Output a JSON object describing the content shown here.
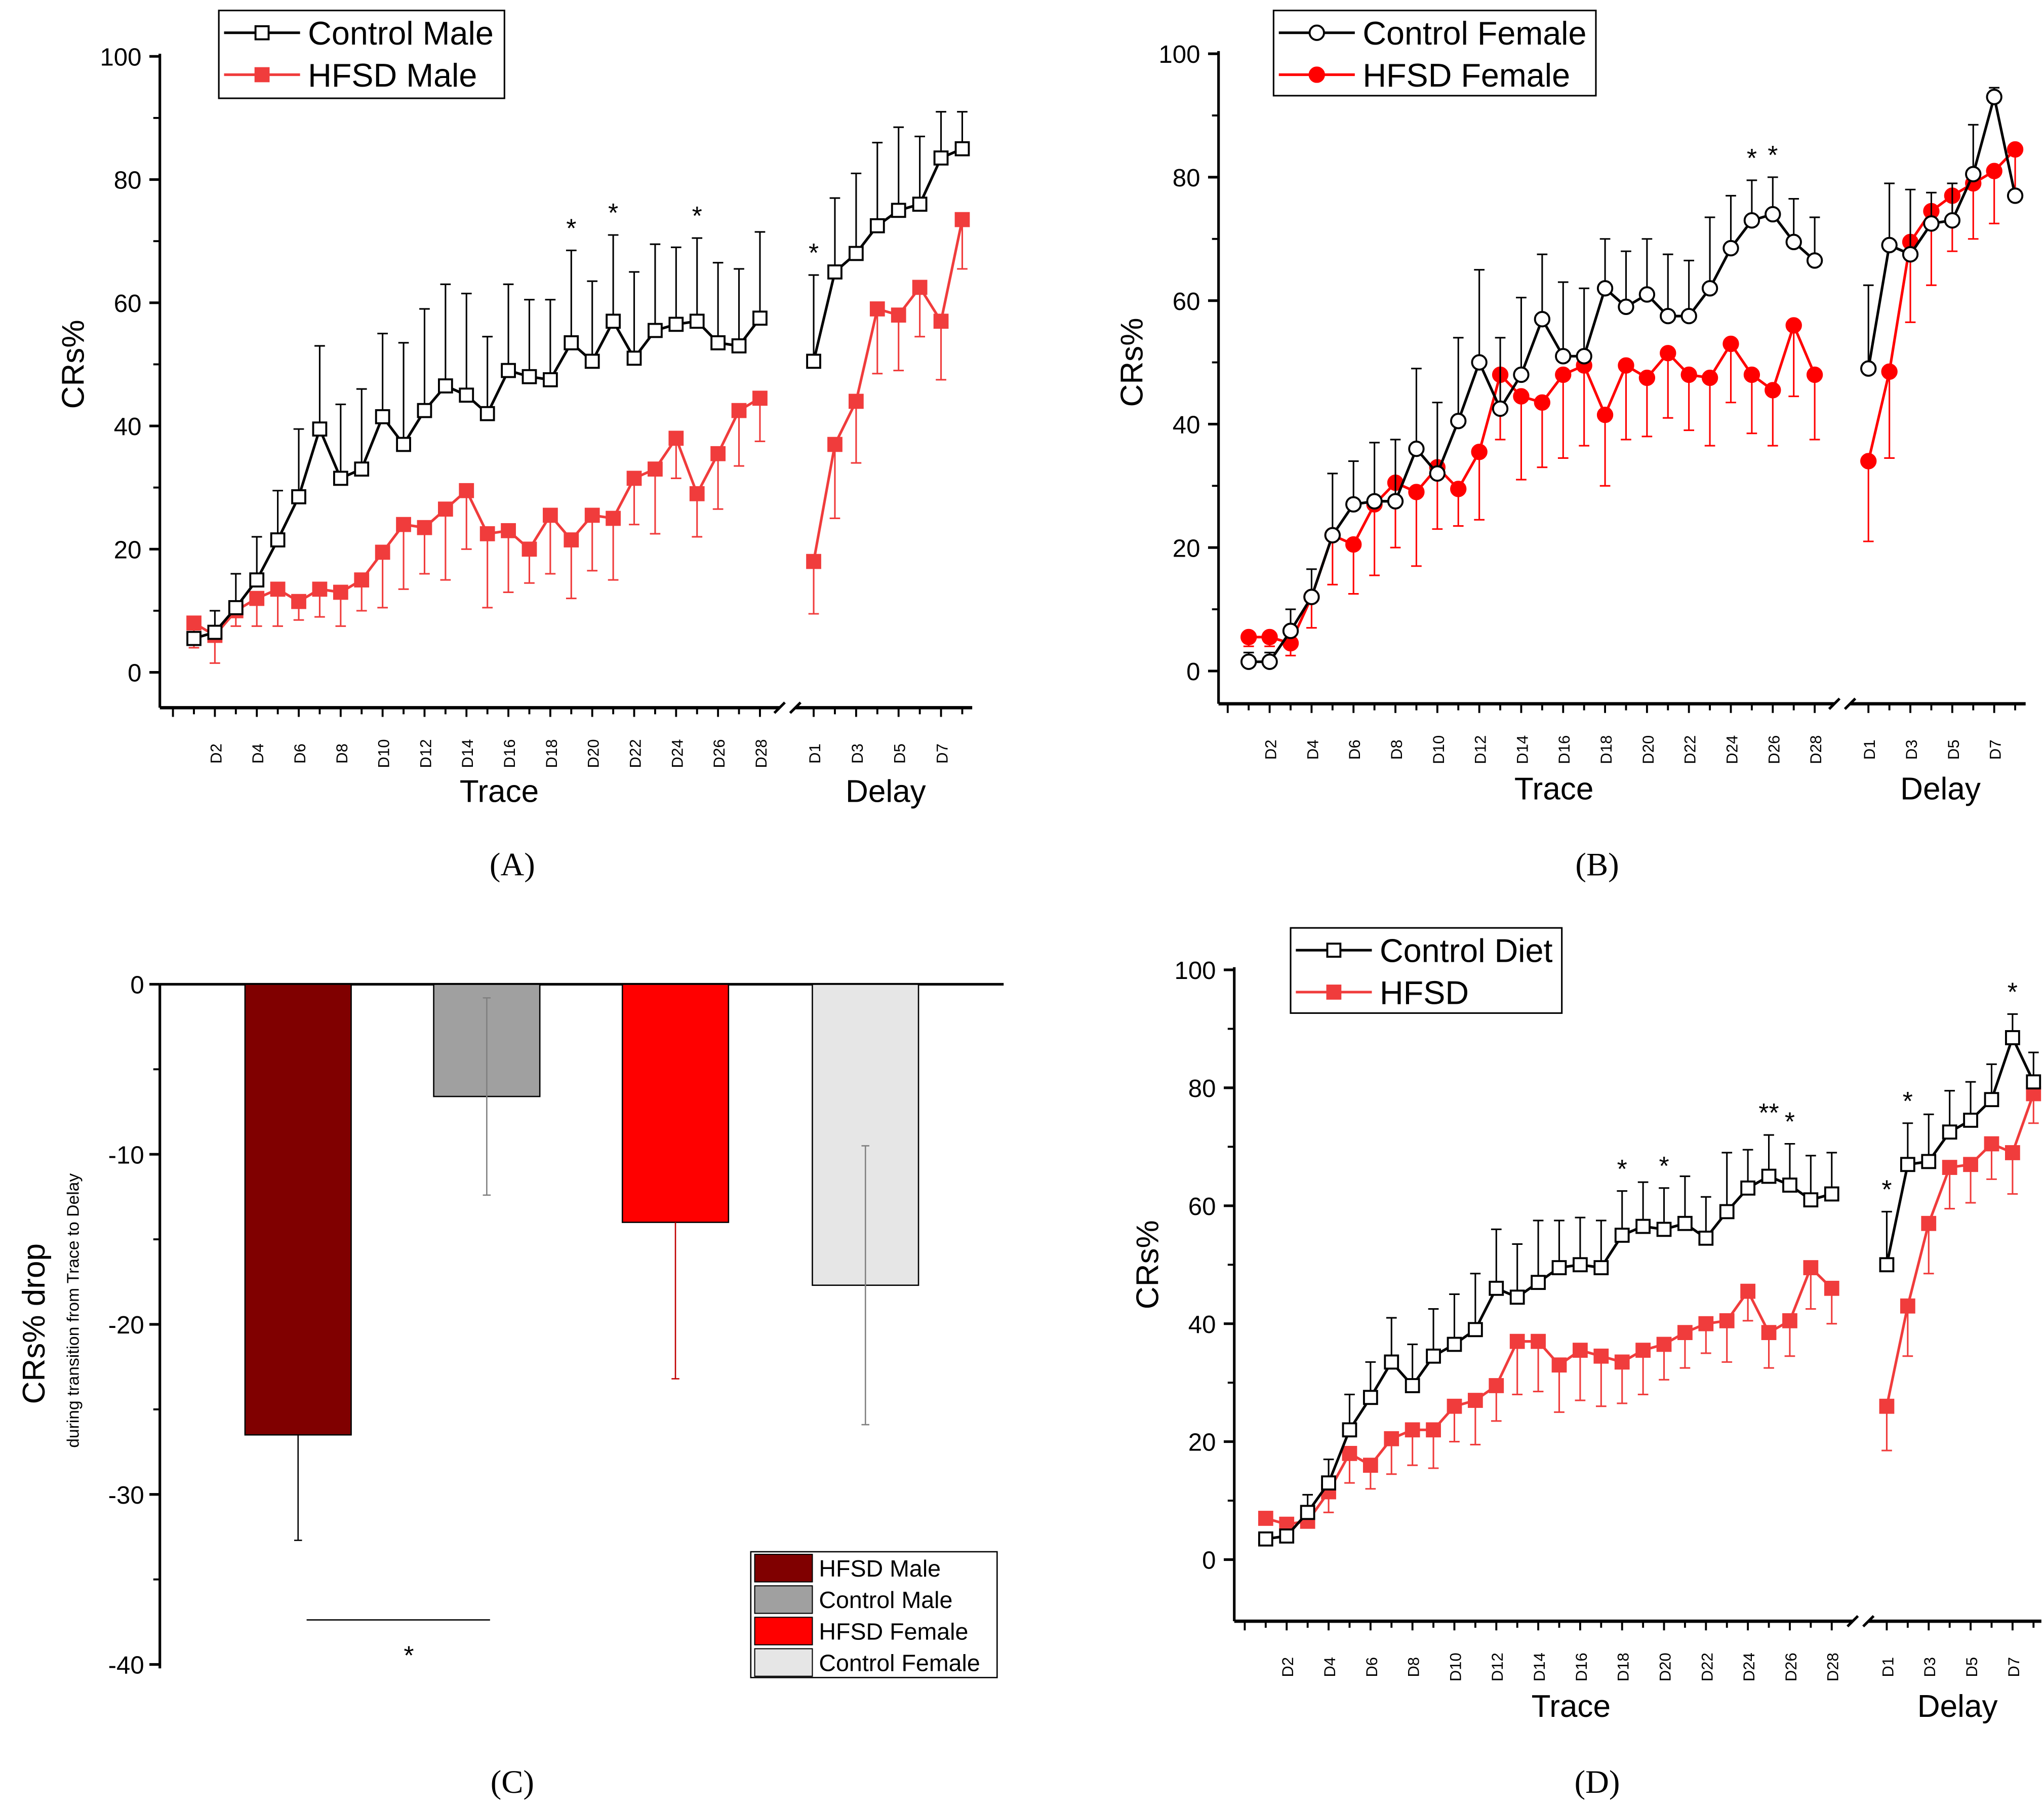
{
  "chart_data": [
    {
      "panel_label": "(A)",
      "type": "line",
      "ylabel": "CRs%",
      "ylim": [
        0,
        100
      ],
      "yticks": [
        "0",
        "20",
        "40",
        "60",
        "80",
        "100"
      ],
      "segments": [
        {
          "xlabel": "Trace",
          "ticks": [
            "D2",
            "D4",
            "D6",
            "D8",
            "D10",
            "D12",
            "D14",
            "D16",
            "D18",
            "D20",
            "D22",
            "D24",
            "D26",
            "D28"
          ]
        },
        {
          "xlabel": "Delay",
          "ticks": [
            "D1",
            "D3",
            "D5",
            "D7"
          ]
        }
      ],
      "legend": [
        "Control Male",
        "HFSD Male"
      ],
      "series": [
        {
          "name": "Control Male",
          "color": "#000000",
          "marker": "open-square",
          "trace": [
            5.5,
            6.5,
            10.5,
            15,
            21.5,
            28.5,
            39.5,
            31.5,
            33,
            41.5,
            37,
            42.5,
            46.5,
            45,
            42,
            49,
            48,
            47.5,
            53.5,
            50.5,
            57,
            51,
            55.5,
            56.5,
            57,
            53.5,
            53,
            57.5
          ],
          "trace_err": [
            1,
            3.5,
            5.5,
            7,
            8,
            11,
            13.5,
            12,
            13,
            13.5,
            16.5,
            16.5,
            16.5,
            16.5,
            12.5,
            14,
            12.5,
            13,
            15,
            13,
            14,
            14,
            14,
            12.5,
            13.5,
            13,
            12.5,
            14
          ],
          "delay": [
            50.5,
            65,
            68,
            72.5,
            75,
            76,
            83.5,
            85
          ],
          "delay_err": [
            14,
            12,
            13,
            13.5,
            13.5,
            11,
            7.5,
            6
          ]
        },
        {
          "name": "HFSD Male",
          "color": "#f03c3c",
          "marker": "filled-square",
          "trace": [
            8,
            6,
            10,
            12,
            13.5,
            11.5,
            13.5,
            13,
            15,
            19.5,
            24,
            23.5,
            26.5,
            29.5,
            22.5,
            23,
            20,
            25.5,
            21.5,
            25.5,
            25,
            31.5,
            33,
            38,
            29,
            35.5,
            42.5,
            44.5
          ],
          "trace_err": [
            4,
            4.5,
            2.5,
            4.5,
            6,
            3,
            4.5,
            5.5,
            5,
            9,
            10.5,
            7.5,
            11.5,
            9.5,
            12,
            10,
            5.5,
            9.5,
            9.5,
            9,
            10,
            7.5,
            10.5,
            6.5,
            7,
            9,
            9,
            7
          ],
          "delay": [
            18,
            37,
            44,
            59,
            58,
            62.5,
            57,
            73.5
          ],
          "delay_err": [
            8.5,
            12,
            10,
            10.5,
            9,
            8,
            9.5,
            8
          ]
        }
      ],
      "annotations": [
        {
          "text": "*",
          "seg": 0,
          "day": 19
        },
        {
          "text": "*",
          "seg": 0,
          "day": 21
        },
        {
          "text": "*",
          "seg": 0,
          "day": 25
        },
        {
          "text": "*",
          "seg": 1,
          "day": 1
        }
      ]
    },
    {
      "panel_label": "(B)",
      "type": "line",
      "ylabel": "CRs%",
      "ylim": [
        0,
        100
      ],
      "yticks": [
        "0",
        "20",
        "40",
        "60",
        "80",
        "100"
      ],
      "segments": [
        {
          "xlabel": "Trace",
          "ticks": [
            "D2",
            "D4",
            "D6",
            "D8",
            "D10",
            "D12",
            "D14",
            "D16",
            "D18",
            "D20",
            "D22",
            "D24",
            "D26",
            "D28"
          ]
        },
        {
          "xlabel": "Delay",
          "ticks": [
            "D1",
            "D3",
            "D5",
            "D7"
          ]
        }
      ],
      "legend": [
        "Control Female",
        "HFSD Female"
      ],
      "series": [
        {
          "name": "Control Female",
          "color": "#000000",
          "marker": "open-circle",
          "trace": [
            1.5,
            1.5,
            6.5,
            12,
            22,
            27,
            27.5,
            27.5,
            36,
            32,
            40.5,
            50,
            42.5,
            48,
            57,
            51,
            51,
            62,
            59,
            61,
            57.5,
            57.5,
            62,
            68.5,
            73,
            74,
            69.5,
            66.5
          ],
          "trace_err": [
            1.5,
            1.5,
            3.5,
            4.5,
            10,
            7,
            9.5,
            10,
            13,
            11.5,
            13.5,
            15,
            11.5,
            12.5,
            10.5,
            12,
            11,
            8,
            9,
            9,
            10,
            9,
            11.5,
            8.5,
            6.5,
            6,
            7,
            7
          ],
          "delay": [
            49,
            69,
            67.5,
            72.5,
            73,
            80.5,
            93,
            77
          ],
          "delay_err": [
            13.5,
            10,
            10.5,
            5,
            6,
            8,
            1.5,
            0
          ]
        },
        {
          "name": "HFSD Female",
          "color": "#ff0000",
          "marker": "filled-circle",
          "trace": [
            5.5,
            5.5,
            4.5,
            12,
            22,
            20.5,
            27,
            30.5,
            29,
            33,
            29.5,
            35.5,
            48,
            44.5,
            43.5,
            48,
            49.5,
            41.5,
            49.5,
            47.5,
            51.5,
            48,
            47.5,
            53,
            48,
            45.5,
            56,
            48
          ],
          "trace_err": [
            1.5,
            1.5,
            2,
            5,
            8,
            8,
            11.5,
            10.5,
            12,
            10,
            6,
            11,
            10.5,
            13.5,
            10.5,
            13.5,
            13,
            11.5,
            12,
            9.5,
            10.5,
            9,
            11,
            9.5,
            9.5,
            9,
            11.5,
            10.5
          ],
          "delay": [
            34,
            48.5,
            69.5,
            74.5,
            77,
            79,
            81,
            84.5
          ],
          "delay_err": [
            13,
            14,
            13,
            12,
            9,
            9,
            8.5,
            8
          ]
        }
      ],
      "annotations": [
        {
          "text": "*",
          "seg": 0,
          "day": 25
        },
        {
          "text": "*",
          "seg": 0,
          "day": 26
        }
      ]
    },
    {
      "panel_label": "(C)",
      "type": "bar",
      "ylabel": "CRs% drop",
      "ylabel_sub": "during transition from Trace to Delay",
      "ylim": [
        -40,
        0
      ],
      "yticks": [
        "0",
        "-10",
        "-20",
        "-30",
        "-40"
      ],
      "categories": [
        "HFSD Male",
        "Control Male",
        "HFSD Female",
        "Control Female"
      ],
      "values": [
        -26.5,
        -6.6,
        -14.0,
        -17.7
      ],
      "errors": [
        6.2,
        5.8,
        9.2,
        8.2
      ],
      "colors": [
        "#800000",
        "#a0a0a0",
        "#ff0000",
        "#e6e6e6"
      ],
      "significance": {
        "text": "*",
        "between": [
          "HFSD Male",
          "Control Male"
        ]
      },
      "legend": "bottom-right"
    },
    {
      "panel_label": "(D)",
      "type": "line",
      "ylabel": "CRs%",
      "ylim": [
        0,
        100
      ],
      "yticks": [
        "0",
        "20",
        "40",
        "60",
        "80",
        "100"
      ],
      "segments": [
        {
          "xlabel": "Trace",
          "ticks": [
            "D2",
            "D4",
            "D6",
            "D8",
            "D10",
            "D12",
            "D14",
            "D16",
            "D18",
            "D20",
            "D22",
            "D24",
            "D26",
            "D28"
          ]
        },
        {
          "xlabel": "Delay",
          "ticks": [
            "D1",
            "D3",
            "D5",
            "D7"
          ]
        }
      ],
      "legend": [
        "Control Diet",
        "HFSD"
      ],
      "series": [
        {
          "name": "Control Diet",
          "color": "#000000",
          "marker": "open-square",
          "trace": [
            3.5,
            4,
            8,
            13,
            22,
            27.5,
            33.5,
            29.5,
            34.5,
            36.5,
            39,
            46,
            44.5,
            47,
            49.5,
            50,
            49.5,
            55,
            56.5,
            56,
            57,
            54.5,
            59,
            63,
            65,
            63.5,
            61,
            62
          ],
          "trace_err": [
            0.5,
            1,
            3,
            4,
            6,
            6,
            7.5,
            7,
            8,
            8.5,
            9.5,
            10,
            9,
            10.5,
            8,
            8,
            8,
            7.5,
            7.5,
            7,
            8,
            7,
            10,
            6.5,
            7,
            7,
            7.5,
            7
          ],
          "delay": [
            50,
            67,
            67.5,
            72.5,
            74.5,
            78,
            88.5,
            81
          ],
          "delay_err": [
            9,
            7,
            8,
            7,
            6.5,
            6,
            4,
            5
          ]
        },
        {
          "name": "HFSD",
          "color": "#f03c3c",
          "marker": "filled-square",
          "trace": [
            7,
            6,
            6.5,
            11.5,
            18,
            16,
            20.5,
            22,
            22,
            26,
            27,
            29.5,
            37,
            37,
            33,
            35.5,
            34.5,
            33.5,
            35.5,
            36.5,
            38.5,
            40,
            40.5,
            45.5,
            38.5,
            40.5,
            49.5,
            46
          ],
          "trace_err": [
            0.5,
            1.5,
            1,
            3.5,
            5,
            4,
            6,
            6,
            6.5,
            6,
            7.5,
            6,
            9,
            8.5,
            8,
            8.5,
            8.5,
            7,
            7.5,
            6,
            6,
            5,
            7,
            5,
            6,
            6,
            7,
            6
          ],
          "delay": [
            26,
            43,
            57,
            66.5,
            67,
            70.5,
            69,
            79
          ],
          "delay_err": [
            7.5,
            8.5,
            8.5,
            7,
            6.5,
            6,
            7,
            5
          ]
        }
      ],
      "annotations": [
        {
          "text": "*",
          "seg": 0,
          "day": 18
        },
        {
          "text": "*",
          "seg": 0,
          "day": 20
        },
        {
          "text": "**",
          "seg": 0,
          "day": 25
        },
        {
          "text": "*",
          "seg": 0,
          "day": 26
        },
        {
          "text": "*",
          "seg": 1,
          "day": 1
        },
        {
          "text": "*",
          "seg": 1,
          "day": 2
        },
        {
          "text": "*",
          "seg": 1,
          "day": 7
        }
      ]
    }
  ]
}
